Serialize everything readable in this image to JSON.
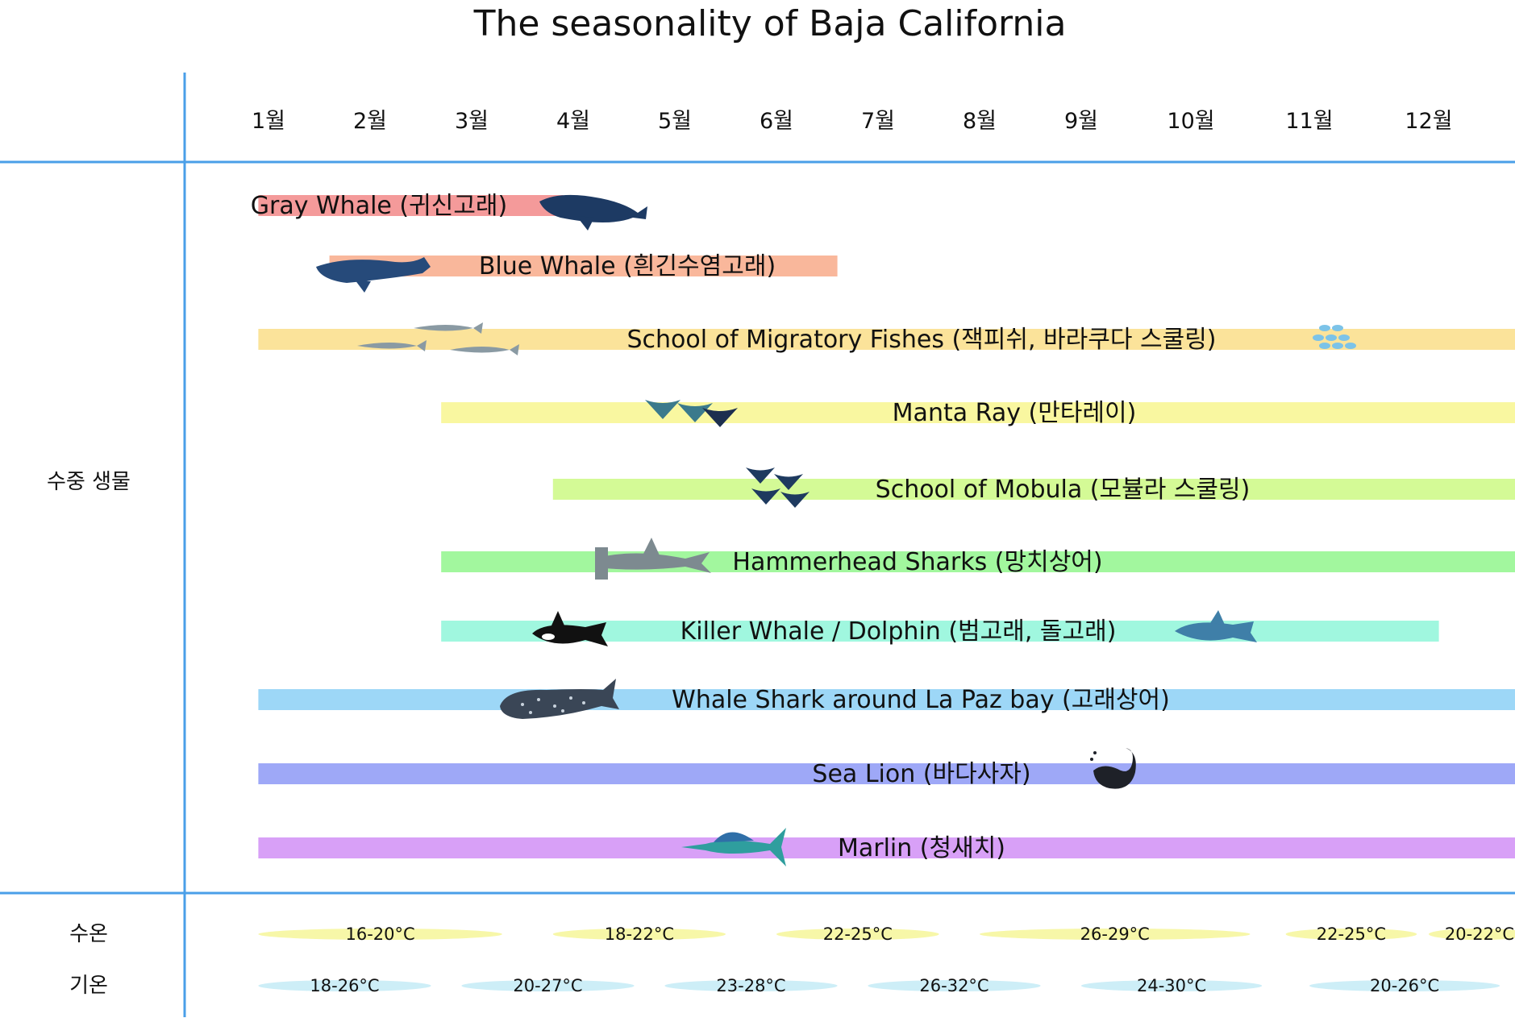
{
  "title": "The seasonality of Baja California",
  "row_labels": {
    "marine_life": "수중 생물",
    "water_temp": "수온",
    "air_temp": "기온"
  },
  "colors": {
    "grid_line": "#4a9fe8",
    "water_temp_fill": "#f7f7a8",
    "air_temp_fill": "#cdeef7"
  },
  "chart_data": {
    "type": "bar",
    "subtype": "gantt-timeline",
    "categories": [
      "1월",
      "2월",
      "3월",
      "4월",
      "5월",
      "6월",
      "7월",
      "8월",
      "9월",
      "10월",
      "11월",
      "12월"
    ],
    "series": [
      {
        "name": "Gray Whale (귀신고래)",
        "start": 0.9,
        "end": 3.9,
        "color": "#f49a9a",
        "icon": "humpback-whale-icon"
      },
      {
        "name": "Blue Whale (흰긴수염고래)",
        "start": 1.6,
        "end": 6.6,
        "color": "#f9b79b",
        "icon": "blue-whale-icon"
      },
      {
        "name": "School of Migratory Fishes (잭피쉬, 바라쿠다 스쿨링)",
        "start": 0.9,
        "end": 13.0,
        "color": "#fbe39a",
        "icon": "barracuda-school-icon"
      },
      {
        "name": "Manta Ray (만타레이)",
        "start": 2.7,
        "end": 13.0,
        "color": "#f9f7a0",
        "icon": "manta-ray-icon"
      },
      {
        "name": "School of Mobula (모뷸라 스쿨링)",
        "start": 3.8,
        "end": 13.0,
        "color": "#d4fa96",
        "icon": "mobula-icon"
      },
      {
        "name": "Hammerhead Sharks (망치상어)",
        "start": 2.7,
        "end": 13.0,
        "color": "#a2f79e",
        "icon": "hammerhead-shark-icon"
      },
      {
        "name": "Killer Whale / Dolphin (범고래, 돌고래)",
        "start": 2.7,
        "end": 12.1,
        "color": "#a0f7df",
        "icon": "orca-dolphin-icon"
      },
      {
        "name": "Whale Shark around La Paz bay (고래상어)",
        "start": 0.9,
        "end": 13.0,
        "color": "#9dd7f7",
        "icon": "whale-shark-icon"
      },
      {
        "name": "Sea Lion (바다사자)",
        "start": 0.9,
        "end": 13.0,
        "color": "#9ea8f7",
        "icon": "sea-lion-icon"
      },
      {
        "name": "Marlin (청새치)",
        "start": 0.9,
        "end": 13.0,
        "color": "#d8a0f7",
        "icon": "marlin-icon"
      }
    ],
    "water_temp": [
      {
        "label": "16-20°C",
        "start": 0.9,
        "end": 3.3
      },
      {
        "label": "18-22°C",
        "start": 3.8,
        "end": 5.5
      },
      {
        "label": "22-25°C",
        "start": 6.0,
        "end": 7.6
      },
      {
        "label": "26-29°C",
        "start": 8.0,
        "end": 10.5
      },
      {
        "label": "22-25°C",
        "start": 10.8,
        "end": 11.9
      },
      {
        "label": "20-22°C",
        "start": 12.0,
        "end": 13.0
      }
    ],
    "air_temp": [
      {
        "label": "18-26°C",
        "start": 0.9,
        "end": 2.6
      },
      {
        "label": "20-27°C",
        "start": 2.9,
        "end": 4.6
      },
      {
        "label": "23-28°C",
        "start": 4.9,
        "end": 6.6
      },
      {
        "label": "26-32°C",
        "start": 6.9,
        "end": 8.6
      },
      {
        "label": "24-30°C",
        "start": 9.0,
        "end": 10.6
      },
      {
        "label": "20-26°C",
        "start": 11.0,
        "end": 12.7
      }
    ]
  }
}
